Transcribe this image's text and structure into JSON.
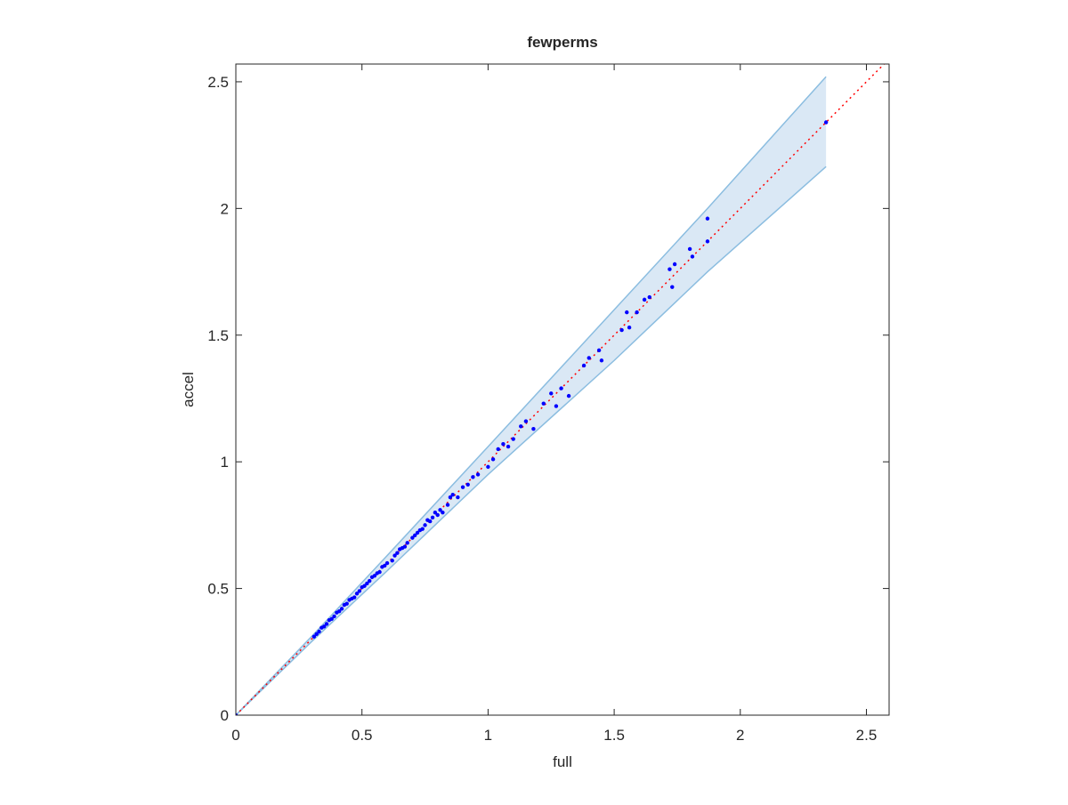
{
  "chart_data": {
    "type": "scatter",
    "title": "fewperms",
    "xlabel": "full",
    "ylabel": "accel",
    "xlim": [
      0,
      2.59
    ],
    "ylim": [
      0,
      2.57
    ],
    "xticks": [
      0,
      0.5,
      1,
      1.5,
      2,
      2.5
    ],
    "yticks": [
      0,
      0.5,
      1,
      1.5,
      2,
      2.5
    ],
    "band": {
      "fill": "#dae8f5",
      "edge": "#8bbde0",
      "x": [
        0,
        0.3,
        0.6,
        1.0,
        1.5,
        1.87,
        2.34
      ],
      "upper": [
        0,
        0.31,
        0.63,
        1.06,
        1.6,
        2.0,
        2.52
      ],
      "lower": [
        0,
        0.29,
        0.57,
        0.95,
        1.4,
        1.75,
        2.165
      ]
    },
    "reference_line": {
      "color": "#ff0000",
      "x": [
        0,
        2.59
      ],
      "y": [
        0,
        2.59
      ]
    },
    "series": [
      {
        "color": "#0000ff",
        "x": [
          0,
          0.31,
          0.32,
          0.33,
          0.34,
          0.35,
          0.36,
          0.37,
          0.38,
          0.39,
          0.4,
          0.41,
          0.42,
          0.43,
          0.44,
          0.45,
          0.46,
          0.47,
          0.48,
          0.49,
          0.5,
          0.51,
          0.52,
          0.53,
          0.54,
          0.55,
          0.56,
          0.57,
          0.58,
          0.59,
          0.6,
          0.62,
          0.63,
          0.64,
          0.65,
          0.66,
          0.67,
          0.68,
          0.7,
          0.71,
          0.72,
          0.73,
          0.74,
          0.75,
          0.76,
          0.77,
          0.78,
          0.79,
          0.8,
          0.81,
          0.82,
          0.84,
          0.85,
          0.86,
          0.88,
          0.9,
          0.92,
          0.94,
          0.96,
          1.0,
          1.02,
          1.04,
          1.06,
          1.08,
          1.1,
          1.13,
          1.15,
          1.18,
          1.22,
          1.25,
          1.27,
          1.29,
          1.32,
          1.38,
          1.4,
          1.44,
          1.45,
          1.53,
          1.55,
          1.56,
          1.59,
          1.62,
          1.64,
          1.72,
          1.73,
          1.74,
          1.8,
          1.81,
          1.87,
          1.87,
          2.34
        ],
        "y": [
          0,
          0.31,
          0.32,
          0.33,
          0.345,
          0.35,
          0.36,
          0.375,
          0.38,
          0.39,
          0.405,
          0.41,
          0.42,
          0.435,
          0.44,
          0.455,
          0.46,
          0.465,
          0.48,
          0.49,
          0.505,
          0.51,
          0.52,
          0.53,
          0.545,
          0.55,
          0.56,
          0.565,
          0.585,
          0.59,
          0.6,
          0.61,
          0.63,
          0.64,
          0.655,
          0.66,
          0.665,
          0.68,
          0.7,
          0.71,
          0.72,
          0.73,
          0.735,
          0.75,
          0.77,
          0.765,
          0.78,
          0.8,
          0.79,
          0.81,
          0.8,
          0.83,
          0.86,
          0.87,
          0.86,
          0.9,
          0.91,
          0.94,
          0.95,
          0.98,
          1.01,
          1.05,
          1.07,
          1.06,
          1.09,
          1.14,
          1.16,
          1.13,
          1.23,
          1.27,
          1.22,
          1.29,
          1.26,
          1.38,
          1.41,
          1.44,
          1.4,
          1.52,
          1.59,
          1.53,
          1.59,
          1.64,
          1.65,
          1.76,
          1.69,
          1.78,
          1.84,
          1.81,
          1.96,
          1.87,
          2.34
        ]
      }
    ]
  }
}
